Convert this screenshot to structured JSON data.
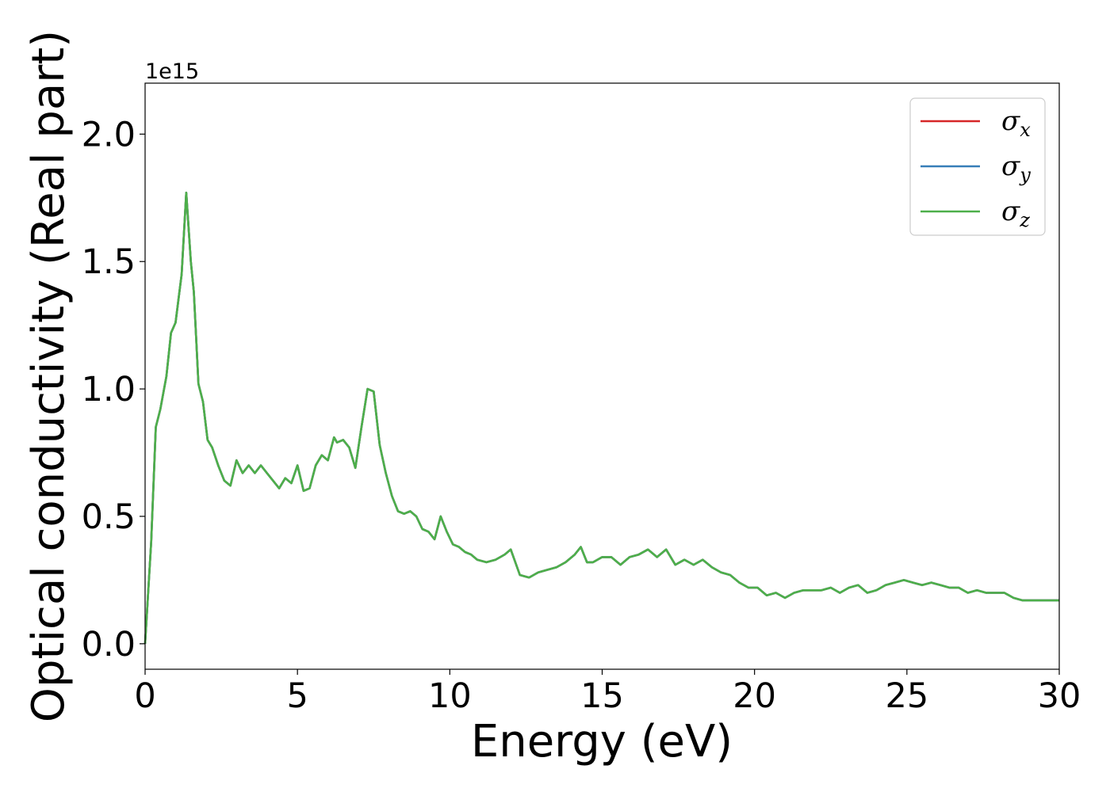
{
  "chart_data": {
    "type": "line",
    "title": "",
    "xlabel": "Energy (eV)",
    "ylabel": "Optical conductivity (Real part)",
    "y_exponent_label": "1e15",
    "xlim": [
      0,
      30
    ],
    "ylim": [
      -0.1,
      2.2
    ],
    "x_ticks": [
      "0",
      "5",
      "10",
      "15",
      "20",
      "25",
      "30"
    ],
    "y_ticks": [
      "0.0",
      "0.5",
      "1.0",
      "1.5",
      "2.0"
    ],
    "grid": false,
    "legend_position": "top-right",
    "series": [
      {
        "name": "σx",
        "color": "#d62728",
        "x": [
          0,
          0.2,
          0.35,
          0.5,
          0.7,
          0.85,
          1.0,
          1.2,
          1.35,
          1.5,
          1.6,
          1.75,
          1.9,
          2.05,
          2.2,
          2.4,
          2.6,
          2.8,
          3.0,
          3.2,
          3.4,
          3.6,
          3.8,
          4.0,
          4.2,
          4.4,
          4.6,
          4.8,
          5.0,
          5.2,
          5.4,
          5.6,
          5.8,
          6.0,
          6.2,
          6.3,
          6.5,
          6.7,
          6.9,
          7.1,
          7.3,
          7.5,
          7.7,
          7.9,
          8.1,
          8.3,
          8.5,
          8.7,
          8.9,
          9.1,
          9.3,
          9.5,
          9.7,
          9.9,
          10.1,
          10.3,
          10.5,
          10.7,
          10.9,
          11.2,
          11.5,
          11.8,
          12.0,
          12.3,
          12.6,
          12.9,
          13.2,
          13.5,
          13.8,
          14.1,
          14.3,
          14.5,
          14.7,
          15.0,
          15.3,
          15.6,
          15.9,
          16.2,
          16.5,
          16.8,
          17.1,
          17.4,
          17.7,
          18.0,
          18.3,
          18.6,
          18.9,
          19.2,
          19.5,
          19.8,
          20.1,
          20.4,
          20.7,
          21.0,
          21.3,
          21.6,
          21.9,
          22.2,
          22.5,
          22.8,
          23.1,
          23.4,
          23.7,
          24.0,
          24.3,
          24.6,
          24.9,
          25.2,
          25.5,
          25.8,
          26.1,
          26.4,
          26.7,
          27.0,
          27.3,
          27.6,
          27.9,
          28.2,
          28.5,
          28.8,
          29.1,
          29.4,
          29.7,
          30.0
        ],
        "y": [
          0.0,
          0.4,
          0.85,
          0.92,
          1.05,
          1.22,
          1.26,
          1.45,
          1.77,
          1.5,
          1.38,
          1.02,
          0.95,
          0.8,
          0.77,
          0.7,
          0.64,
          0.62,
          0.72,
          0.67,
          0.7,
          0.67,
          0.7,
          0.67,
          0.64,
          0.61,
          0.65,
          0.63,
          0.7,
          0.6,
          0.61,
          0.7,
          0.74,
          0.72,
          0.81,
          0.79,
          0.8,
          0.77,
          0.69,
          0.85,
          1.0,
          0.99,
          0.78,
          0.67,
          0.58,
          0.52,
          0.51,
          0.52,
          0.5,
          0.45,
          0.44,
          0.41,
          0.5,
          0.44,
          0.39,
          0.38,
          0.36,
          0.35,
          0.33,
          0.32,
          0.33,
          0.35,
          0.37,
          0.27,
          0.26,
          0.28,
          0.29,
          0.3,
          0.32,
          0.35,
          0.38,
          0.32,
          0.32,
          0.34,
          0.34,
          0.31,
          0.34,
          0.35,
          0.37,
          0.34,
          0.37,
          0.31,
          0.33,
          0.31,
          0.33,
          0.3,
          0.28,
          0.27,
          0.24,
          0.22,
          0.22,
          0.19,
          0.2,
          0.18,
          0.2,
          0.21,
          0.21,
          0.21,
          0.22,
          0.2,
          0.22,
          0.23,
          0.2,
          0.21,
          0.23,
          0.24,
          0.25,
          0.24,
          0.23,
          0.24,
          0.23,
          0.22,
          0.22,
          0.2,
          0.21,
          0.2,
          0.2,
          0.2,
          0.18,
          0.17,
          0.17,
          0.17,
          0.17,
          0.17
        ]
      },
      {
        "name": "σy",
        "color": "#377eb8",
        "x": [
          0,
          0.2,
          0.35,
          0.5,
          0.7,
          0.85,
          1.0,
          1.2,
          1.35,
          1.5,
          1.6,
          1.75,
          1.9,
          2.05,
          2.2,
          2.4,
          2.6,
          2.8,
          3.0,
          3.2,
          3.4,
          3.6,
          3.8,
          4.0,
          4.2,
          4.4,
          4.6,
          4.8,
          5.0,
          5.2,
          5.4,
          5.6,
          5.8,
          6.0,
          6.2,
          6.3,
          6.5,
          6.7,
          6.9,
          7.1,
          7.3,
          7.5,
          7.7,
          7.9,
          8.1,
          8.3,
          8.5,
          8.7,
          8.9,
          9.1,
          9.3,
          9.5,
          9.7,
          9.9,
          10.1,
          10.3,
          10.5,
          10.7,
          10.9,
          11.2,
          11.5,
          11.8,
          12.0,
          12.3,
          12.6,
          12.9,
          13.2,
          13.5,
          13.8,
          14.1,
          14.3,
          14.5,
          14.7,
          15.0,
          15.3,
          15.6,
          15.9,
          16.2,
          16.5,
          16.8,
          17.1,
          17.4,
          17.7,
          18.0,
          18.3,
          18.6,
          18.9,
          19.2,
          19.5,
          19.8,
          20.1,
          20.4,
          20.7,
          21.0,
          21.3,
          21.6,
          21.9,
          22.2,
          22.5,
          22.8,
          23.1,
          23.4,
          23.7,
          24.0,
          24.3,
          24.6,
          24.9,
          25.2,
          25.5,
          25.8,
          26.1,
          26.4,
          26.7,
          27.0,
          27.3,
          27.6,
          27.9,
          28.2,
          28.5,
          28.8,
          29.1,
          29.4,
          29.7,
          30.0
        ],
        "y": [
          0.0,
          0.4,
          0.85,
          0.92,
          1.05,
          1.22,
          1.26,
          1.45,
          1.77,
          1.5,
          1.38,
          1.02,
          0.95,
          0.8,
          0.77,
          0.7,
          0.64,
          0.62,
          0.72,
          0.67,
          0.7,
          0.67,
          0.7,
          0.67,
          0.64,
          0.61,
          0.65,
          0.63,
          0.7,
          0.6,
          0.61,
          0.7,
          0.74,
          0.72,
          0.81,
          0.79,
          0.8,
          0.77,
          0.69,
          0.85,
          1.0,
          0.99,
          0.78,
          0.67,
          0.58,
          0.52,
          0.51,
          0.52,
          0.5,
          0.45,
          0.44,
          0.41,
          0.5,
          0.44,
          0.39,
          0.38,
          0.36,
          0.35,
          0.33,
          0.32,
          0.33,
          0.35,
          0.37,
          0.27,
          0.26,
          0.28,
          0.29,
          0.3,
          0.32,
          0.35,
          0.38,
          0.32,
          0.32,
          0.34,
          0.34,
          0.31,
          0.34,
          0.35,
          0.37,
          0.34,
          0.37,
          0.31,
          0.33,
          0.31,
          0.33,
          0.3,
          0.28,
          0.27,
          0.24,
          0.22,
          0.22,
          0.19,
          0.2,
          0.18,
          0.2,
          0.21,
          0.21,
          0.21,
          0.22,
          0.2,
          0.22,
          0.23,
          0.2,
          0.21,
          0.23,
          0.24,
          0.25,
          0.24,
          0.23,
          0.24,
          0.23,
          0.22,
          0.22,
          0.2,
          0.21,
          0.2,
          0.2,
          0.2,
          0.18,
          0.17,
          0.17,
          0.17,
          0.17,
          0.17
        ]
      },
      {
        "name": "σz",
        "color": "#4daf4a",
        "x": [
          0,
          0.2,
          0.35,
          0.5,
          0.7,
          0.85,
          1.0,
          1.2,
          1.35,
          1.5,
          1.6,
          1.75,
          1.9,
          2.05,
          2.2,
          2.4,
          2.6,
          2.8,
          3.0,
          3.2,
          3.4,
          3.6,
          3.8,
          4.0,
          4.2,
          4.4,
          4.6,
          4.8,
          5.0,
          5.2,
          5.4,
          5.6,
          5.8,
          6.0,
          6.2,
          6.3,
          6.5,
          6.7,
          6.9,
          7.1,
          7.3,
          7.5,
          7.7,
          7.9,
          8.1,
          8.3,
          8.5,
          8.7,
          8.9,
          9.1,
          9.3,
          9.5,
          9.7,
          9.9,
          10.1,
          10.3,
          10.5,
          10.7,
          10.9,
          11.2,
          11.5,
          11.8,
          12.0,
          12.3,
          12.6,
          12.9,
          13.2,
          13.5,
          13.8,
          14.1,
          14.3,
          14.5,
          14.7,
          15.0,
          15.3,
          15.6,
          15.9,
          16.2,
          16.5,
          16.8,
          17.1,
          17.4,
          17.7,
          18.0,
          18.3,
          18.6,
          18.9,
          19.2,
          19.5,
          19.8,
          20.1,
          20.4,
          20.7,
          21.0,
          21.3,
          21.6,
          21.9,
          22.2,
          22.5,
          22.8,
          23.1,
          23.4,
          23.7,
          24.0,
          24.3,
          24.6,
          24.9,
          25.2,
          25.5,
          25.8,
          26.1,
          26.4,
          26.7,
          27.0,
          27.3,
          27.6,
          27.9,
          28.2,
          28.5,
          28.8,
          29.1,
          29.4,
          29.7,
          30.0
        ],
        "y": [
          0.0,
          0.4,
          0.85,
          0.92,
          1.05,
          1.22,
          1.26,
          1.45,
          1.77,
          1.5,
          1.38,
          1.02,
          0.95,
          0.8,
          0.77,
          0.7,
          0.64,
          0.62,
          0.72,
          0.67,
          0.7,
          0.67,
          0.7,
          0.67,
          0.64,
          0.61,
          0.65,
          0.63,
          0.7,
          0.6,
          0.61,
          0.7,
          0.74,
          0.72,
          0.81,
          0.79,
          0.8,
          0.77,
          0.69,
          0.85,
          1.0,
          0.99,
          0.78,
          0.67,
          0.58,
          0.52,
          0.51,
          0.52,
          0.5,
          0.45,
          0.44,
          0.41,
          0.5,
          0.44,
          0.39,
          0.38,
          0.36,
          0.35,
          0.33,
          0.32,
          0.33,
          0.35,
          0.37,
          0.27,
          0.26,
          0.28,
          0.29,
          0.3,
          0.32,
          0.35,
          0.38,
          0.32,
          0.32,
          0.34,
          0.34,
          0.31,
          0.34,
          0.35,
          0.37,
          0.34,
          0.37,
          0.31,
          0.33,
          0.31,
          0.33,
          0.3,
          0.28,
          0.27,
          0.24,
          0.22,
          0.22,
          0.19,
          0.2,
          0.18,
          0.2,
          0.21,
          0.21,
          0.21,
          0.22,
          0.2,
          0.22,
          0.23,
          0.2,
          0.21,
          0.23,
          0.24,
          0.25,
          0.24,
          0.23,
          0.24,
          0.23,
          0.22,
          0.22,
          0.2,
          0.21,
          0.2,
          0.2,
          0.2,
          0.18,
          0.17,
          0.17,
          0.17,
          0.17,
          0.17
        ]
      }
    ]
  }
}
